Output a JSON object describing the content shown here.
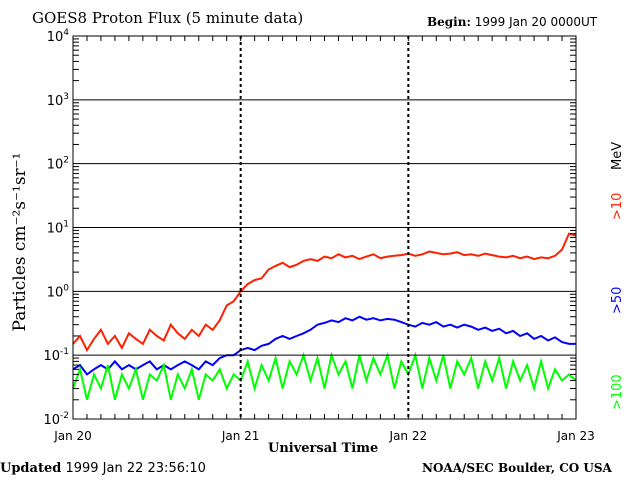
{
  "chart_data": {
    "type": "line",
    "title": "GOES8 Proton Flux (5 minute data)",
    "begin_label": "Begin:",
    "begin_value": "1999 Jan 20 0000UT",
    "xlabel": "Universal Time",
    "ylabel": "Particles cm⁻²s⁻¹sr⁻¹",
    "yscale": "log",
    "ylim": [
      0.01,
      10000
    ],
    "yticks": [
      {
        "base": "10",
        "exp": "4"
      },
      {
        "base": "10",
        "exp": "3"
      },
      {
        "base": "10",
        "exp": "2"
      },
      {
        "base": "10",
        "exp": "1"
      },
      {
        "base": "10",
        "exp": "0"
      },
      {
        "base": "10",
        "exp": "-1"
      },
      {
        "base": "10",
        "exp": "-2"
      }
    ],
    "xlim_hours": [
      0,
      72
    ],
    "xticks": [
      "Jan 20",
      "Jan 21",
      "Jan 22",
      "Jan 23"
    ],
    "x_step_hours": 1,
    "unit_label": "MeV",
    "series": [
      {
        "name": ">10",
        "color": "#ff2000",
        "values": [
          0.15,
          0.2,
          0.12,
          0.18,
          0.25,
          0.15,
          0.2,
          0.13,
          0.22,
          0.18,
          0.15,
          0.25,
          0.2,
          0.17,
          0.3,
          0.22,
          0.18,
          0.25,
          0.2,
          0.3,
          0.25,
          0.35,
          0.6,
          0.7,
          1.0,
          1.3,
          1.5,
          1.6,
          2.2,
          2.5,
          2.8,
          2.4,
          2.6,
          3.0,
          3.2,
          3.0,
          3.5,
          3.3,
          3.8,
          3.4,
          3.6,
          3.2,
          3.5,
          3.8,
          3.3,
          3.5,
          3.6,
          3.7,
          3.9,
          3.6,
          3.8,
          4.2,
          4.0,
          3.8,
          3.9,
          4.1,
          3.7,
          3.8,
          3.6,
          3.9,
          3.7,
          3.5,
          3.4,
          3.6,
          3.3,
          3.5,
          3.2,
          3.4,
          3.3,
          3.6,
          4.5,
          8.0,
          7.5
        ]
      },
      {
        "name": ">50",
        "color": "#0000ff",
        "values": [
          0.06,
          0.07,
          0.05,
          0.06,
          0.07,
          0.06,
          0.08,
          0.06,
          0.07,
          0.06,
          0.07,
          0.08,
          0.06,
          0.07,
          0.06,
          0.07,
          0.08,
          0.07,
          0.06,
          0.08,
          0.07,
          0.09,
          0.1,
          0.1,
          0.12,
          0.13,
          0.12,
          0.14,
          0.15,
          0.18,
          0.2,
          0.18,
          0.2,
          0.22,
          0.25,
          0.3,
          0.32,
          0.35,
          0.33,
          0.38,
          0.35,
          0.4,
          0.36,
          0.38,
          0.35,
          0.37,
          0.36,
          0.33,
          0.3,
          0.28,
          0.32,
          0.3,
          0.33,
          0.28,
          0.3,
          0.27,
          0.3,
          0.28,
          0.25,
          0.27,
          0.24,
          0.26,
          0.22,
          0.24,
          0.2,
          0.22,
          0.18,
          0.2,
          0.17,
          0.19,
          0.16,
          0.15,
          0.15
        ]
      },
      {
        "name": ">100",
        "color": "#00ff00",
        "values": [
          0.03,
          0.06,
          0.02,
          0.05,
          0.03,
          0.07,
          0.02,
          0.05,
          0.03,
          0.06,
          0.02,
          0.05,
          0.04,
          0.07,
          0.02,
          0.05,
          0.03,
          0.06,
          0.02,
          0.05,
          0.04,
          0.06,
          0.03,
          0.05,
          0.04,
          0.08,
          0.03,
          0.07,
          0.04,
          0.09,
          0.03,
          0.08,
          0.05,
          0.1,
          0.04,
          0.09,
          0.03,
          0.1,
          0.05,
          0.08,
          0.03,
          0.1,
          0.04,
          0.09,
          0.05,
          0.1,
          0.03,
          0.08,
          0.05,
          0.1,
          0.03,
          0.09,
          0.04,
          0.1,
          0.03,
          0.08,
          0.05,
          0.09,
          0.03,
          0.08,
          0.04,
          0.09,
          0.03,
          0.08,
          0.04,
          0.07,
          0.03,
          0.08,
          0.03,
          0.06,
          0.04,
          0.05,
          0.04
        ]
      }
    ]
  },
  "footer": {
    "updated_label": "Updated",
    "updated_value": "1999 Jan 22 23:56:10",
    "credit": "NOAA/SEC Boulder, CO USA"
  }
}
